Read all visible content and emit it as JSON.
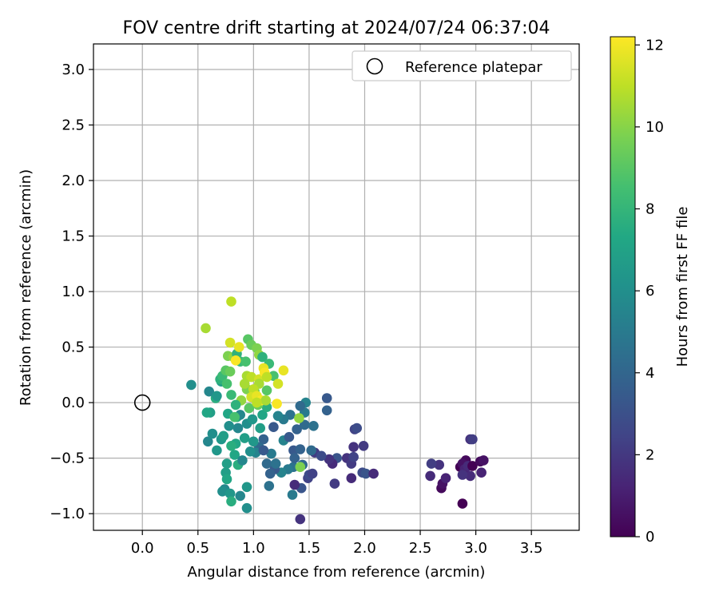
{
  "chart_data": {
    "type": "scatter",
    "title": "FOV centre drift starting at 2024/07/24 06:37:04",
    "xlabel": "Angular distance from reference (arcmin)",
    "ylabel": "Rotation from reference (arcmin)",
    "xlim": [
      -0.44,
      3.93
    ],
    "ylim": [
      -1.15,
      3.23
    ],
    "xticks": [
      "0.0",
      "0.5",
      "1.0",
      "1.5",
      "2.0",
      "2.5",
      "3.0",
      "3.5"
    ],
    "yticks": [
      "−1.0",
      "−0.5",
      "0.0",
      "0.5",
      "1.0",
      "1.5",
      "2.0",
      "2.5",
      "3.0"
    ],
    "grid": true,
    "legend": {
      "placement": "top-right",
      "entries": [
        "Reference platepar"
      ]
    },
    "reference_point": {
      "x": 0.0,
      "y": 0.0,
      "label": "Reference platepar"
    },
    "colorbar": {
      "label": "Hours from first FF file",
      "range": [
        0,
        12.2
      ],
      "ticks": [
        "0",
        "2",
        "4",
        "6",
        "8",
        "10",
        "12"
      ],
      "colormap": "viridis"
    },
    "series": [
      {
        "hours": [
          0.0,
          0.3,
          0.6,
          1.2,
          1.5,
          1.8,
          2.2
        ],
        "points": [
          [
            2.88,
            -0.91
          ],
          [
            2.69,
            -0.77
          ],
          [
            2.7,
            -0.73
          ],
          [
            2.73,
            -0.68
          ],
          [
            2.59,
            -0.66
          ],
          [
            2.67,
            -0.56
          ],
          [
            2.6,
            -0.55
          ],
          [
            2.86,
            -0.58
          ],
          [
            2.91,
            -0.52
          ],
          [
            2.88,
            -0.55
          ],
          [
            2.9,
            -0.6
          ],
          [
            2.93,
            -0.57
          ],
          [
            2.95,
            -0.33
          ],
          [
            2.97,
            -0.33
          ],
          [
            2.97,
            -0.57
          ],
          [
            3.04,
            -0.53
          ],
          [
            3.07,
            -0.52
          ],
          [
            3.05,
            -0.63
          ],
          [
            2.95,
            -0.66
          ],
          [
            2.88,
            -0.65
          ]
        ]
      },
      {
        "hours": [
          1.5,
          1.8,
          2.1,
          2.4,
          2.8,
          3.2
        ],
        "points": [
          [
            1.88,
            -0.68
          ],
          [
            1.84,
            -0.5
          ],
          [
            1.88,
            -0.55
          ],
          [
            1.9,
            -0.49
          ],
          [
            1.98,
            -0.63
          ],
          [
            2.01,
            -0.64
          ],
          [
            2.08,
            -0.64
          ],
          [
            1.9,
            -0.4
          ],
          [
            1.99,
            -0.39
          ],
          [
            1.91,
            -0.24
          ],
          [
            1.93,
            -0.23
          ],
          [
            1.75,
            -0.5
          ],
          [
            1.71,
            -0.55
          ],
          [
            1.68,
            -0.51
          ],
          [
            1.55,
            -0.45
          ],
          [
            1.49,
            -0.68
          ],
          [
            1.5,
            -0.65
          ],
          [
            1.43,
            -0.77
          ],
          [
            1.37,
            -0.74
          ],
          [
            1.42,
            -1.05
          ],
          [
            1.73,
            -0.73
          ],
          [
            1.53,
            -0.64
          ],
          [
            1.61,
            -0.48
          ],
          [
            1.44,
            -0.56
          ]
        ]
      },
      {
        "hours": [
          3.4,
          3.8,
          4.2,
          4.6,
          5.0,
          5.4
        ],
        "points": [
          [
            1.36,
            -0.43
          ],
          [
            1.42,
            -0.42
          ],
          [
            1.44,
            -0.56
          ],
          [
            1.36,
            -0.58
          ],
          [
            1.31,
            -0.6
          ],
          [
            1.25,
            -0.63
          ],
          [
            1.19,
            -0.6
          ],
          [
            1.15,
            -0.64
          ],
          [
            1.12,
            -0.55
          ],
          [
            1.2,
            -0.55
          ],
          [
            1.16,
            -0.46
          ],
          [
            1.27,
            -0.34
          ],
          [
            1.32,
            -0.31
          ],
          [
            1.39,
            -0.24
          ],
          [
            1.46,
            -0.2
          ],
          [
            1.54,
            -0.21
          ],
          [
            1.46,
            -0.09
          ],
          [
            1.47,
            0.0
          ],
          [
            1.66,
            0.04
          ],
          [
            1.66,
            -0.07
          ],
          [
            1.42,
            -0.03
          ],
          [
            1.33,
            -0.11
          ],
          [
            1.27,
            -0.15
          ],
          [
            1.22,
            -0.12
          ],
          [
            1.18,
            -0.22
          ],
          [
            1.09,
            -0.33
          ],
          [
            1.05,
            -0.4
          ],
          [
            1.14,
            -0.75
          ],
          [
            1.35,
            -0.83
          ],
          [
            1.02,
            -0.45
          ],
          [
            1.09,
            -0.43
          ],
          [
            1.37,
            -0.5
          ],
          [
            1.52,
            -0.43
          ]
        ]
      },
      {
        "hours": [
          5.6,
          6.0,
          6.4,
          6.8,
          7.2,
          7.6
        ],
        "points": [
          [
            0.74,
            -0.78
          ],
          [
            0.72,
            -0.8
          ],
          [
            0.79,
            -0.82
          ],
          [
            0.75,
            -0.63
          ],
          [
            0.76,
            -0.69
          ],
          [
            0.8,
            -0.89
          ],
          [
            0.88,
            -0.84
          ],
          [
            0.94,
            -0.95
          ],
          [
            0.94,
            -0.76
          ],
          [
            0.76,
            -0.55
          ],
          [
            0.83,
            -0.47
          ],
          [
            0.86,
            -0.56
          ],
          [
            0.9,
            -0.52
          ],
          [
            0.97,
            -0.44
          ],
          [
            1.0,
            -0.35
          ],
          [
            0.92,
            -0.32
          ],
          [
            0.84,
            -0.37
          ],
          [
            0.8,
            -0.39
          ],
          [
            0.86,
            -0.23
          ],
          [
            0.78,
            -0.21
          ],
          [
            0.71,
            -0.33
          ],
          [
            0.73,
            -0.3
          ],
          [
            0.77,
            -0.1
          ],
          [
            0.85,
            -0.13
          ],
          [
            0.88,
            -0.11
          ],
          [
            0.94,
            -0.19
          ],
          [
            0.99,
            -0.15
          ],
          [
            1.06,
            -0.23
          ],
          [
            1.08,
            -0.11
          ],
          [
            1.12,
            -0.04
          ],
          [
            0.59,
            -0.35
          ],
          [
            0.63,
            -0.28
          ],
          [
            0.67,
            -0.43
          ],
          [
            0.61,
            -0.09
          ],
          [
            0.58,
            -0.09
          ],
          [
            0.66,
            0.04
          ],
          [
            0.6,
            0.1
          ],
          [
            0.44,
            0.16
          ],
          [
            0.67,
            0.06
          ],
          [
            0.71,
            0.19
          ]
        ]
      },
      {
        "hours": [
          7.8,
          8.2,
          8.6,
          9.0,
          9.4,
          9.8,
          10.2
        ],
        "points": [
          [
            0.7,
            0.21
          ],
          [
            0.72,
            0.24
          ],
          [
            0.76,
            0.17
          ],
          [
            0.75,
            0.29
          ],
          [
            0.79,
            0.28
          ],
          [
            0.77,
            0.42
          ],
          [
            0.82,
            0.41
          ],
          [
            0.85,
            0.44
          ],
          [
            0.88,
            0.37
          ],
          [
            0.93,
            0.37
          ],
          [
            0.95,
            0.57
          ],
          [
            0.98,
            0.52
          ],
          [
            1.03,
            0.49
          ],
          [
            1.05,
            0.43
          ],
          [
            1.08,
            0.41
          ],
          [
            1.14,
            0.35
          ],
          [
            1.18,
            0.24
          ],
          [
            1.12,
            0.11
          ],
          [
            1.01,
            0.1
          ],
          [
            0.94,
            0.12
          ],
          [
            0.89,
            0.02
          ],
          [
            0.84,
            -0.02
          ],
          [
            0.8,
            0.07
          ],
          [
            0.83,
            -0.13
          ],
          [
            0.96,
            -0.05
          ],
          [
            1.04,
            -0.02
          ],
          [
            1.42,
            -0.58
          ],
          [
            1.41,
            -0.14
          ]
        ]
      },
      {
        "hours": [
          10.6,
          11.0,
          11.4,
          11.8,
          12.1
        ],
        "points": [
          [
            0.57,
            0.67
          ],
          [
            0.8,
            0.91
          ],
          [
            0.79,
            0.54
          ],
          [
            0.87,
            0.5
          ],
          [
            0.84,
            0.38
          ],
          [
            0.94,
            0.24
          ],
          [
            0.98,
            0.23
          ],
          [
            1.05,
            0.21
          ],
          [
            1.09,
            0.31
          ],
          [
            1.1,
            0.27
          ],
          [
            1.05,
            0.17
          ],
          [
            1.0,
            0.12
          ],
          [
            0.98,
            0.05
          ],
          [
            1.03,
            0.06
          ],
          [
            1.07,
            0.02
          ],
          [
            1.11,
            0.02
          ],
          [
            1.03,
            0.0
          ],
          [
            1.22,
            0.17
          ],
          [
            1.27,
            0.29
          ],
          [
            1.21,
            -0.01
          ],
          [
            0.92,
            0.17
          ],
          [
            1.12,
            0.23
          ]
        ]
      }
    ]
  }
}
